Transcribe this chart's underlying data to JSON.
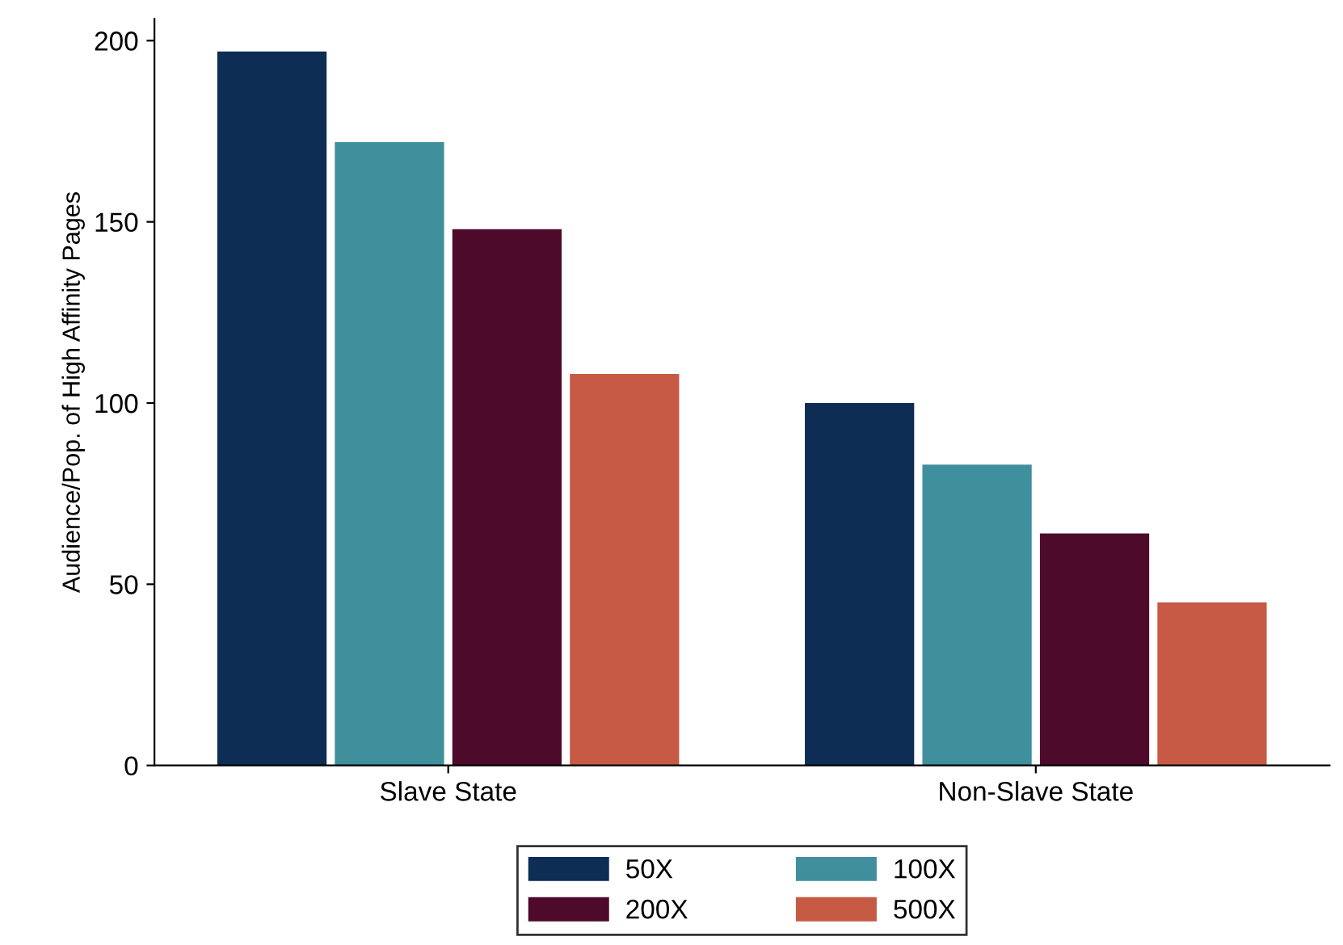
{
  "chart_data": {
    "type": "bar",
    "ylabel": "Audience/Pop. of High Affinity Pages",
    "categories": [
      "Slave State",
      "Non-Slave State"
    ],
    "series": [
      {
        "name": "50X",
        "color": "#0d2d55",
        "values": [
          197,
          100
        ]
      },
      {
        "name": "100X",
        "color": "#3f8f9c",
        "values": [
          172,
          83
        ]
      },
      {
        "name": "200X",
        "color": "#4d0a2a",
        "values": [
          148,
          64
        ]
      },
      {
        "name": "500X",
        "color": "#c65a45",
        "values": [
          108,
          45
        ]
      }
    ],
    "ylim": [
      0,
      206
    ],
    "yticks": [
      0,
      50,
      100,
      150,
      200
    ],
    "grid": false,
    "legend": "bottom"
  }
}
